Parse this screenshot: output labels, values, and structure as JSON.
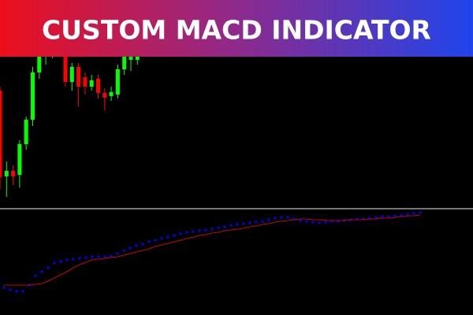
{
  "title": "CUSTOM MACD INDICATOR",
  "chart_data": [
    {
      "type": "candlestick",
      "ylim": [
        0,
        262
      ],
      "up_color": "#00ff00",
      "down_color": "#ff0000",
      "open": [
        147,
        38,
        45,
        40,
        79,
        110,
        170,
        190,
        196,
        200,
        190,
        158,
        177,
        164,
        152,
        162,
        144,
        140,
        142,
        174,
        186,
        186
      ],
      "high": [
        152,
        57,
        52,
        84,
        114,
        177,
        202,
        200,
        205,
        210,
        194,
        182,
        182,
        170,
        167,
        167,
        150,
        152,
        180,
        194,
        192,
        192
      ],
      "low": [
        22,
        12,
        27,
        24,
        72,
        102,
        162,
        180,
        188,
        190,
        152,
        147,
        127,
        142,
        147,
        137,
        122,
        134,
        137,
        167,
        172,
        180
      ],
      "close": [
        37,
        45,
        38,
        79,
        110,
        170,
        192,
        196,
        200,
        194,
        158,
        177,
        152,
        152,
        160,
        144,
        138,
        145,
        174,
        190,
        190,
        190
      ]
    },
    {
      "type": "line",
      "ylim": [
        0,
        135
      ],
      "series": [
        {
          "color": "#0000ff",
          "style": "dots",
          "values": [
            35,
            32,
            30,
            30,
            38,
            50,
            55,
            60,
            66,
            68,
            70,
            71,
            72,
            73,
            74,
            74,
            74,
            75,
            78,
            82,
            85,
            88,
            90,
            93,
            95,
            97,
            99,
            101,
            103,
            105,
            106,
            107,
            108,
            109,
            111,
            112,
            114,
            115,
            116,
            117,
            118,
            119,
            121,
            123,
            124,
            124,
            122,
            120,
            119,
            118,
            117,
            118,
            119,
            119,
            120,
            121,
            122,
            122,
            123,
            124,
            125,
            125,
            126,
            127,
            128,
            129,
            130
          ]
        },
        {
          "color": "#ff0000",
          "style": "line",
          "values": [
            38,
            38,
            38,
            38,
            38,
            39,
            40,
            43,
            47,
            51,
            55,
            60,
            64,
            67,
            70,
            71,
            72,
            73,
            74,
            76,
            78,
            80,
            82,
            84,
            87,
            89,
            91,
            93,
            95,
            97,
            99,
            101,
            102,
            104,
            105,
            107,
            108,
            109,
            110,
            112,
            113,
            115,
            116,
            118,
            119,
            120,
            121,
            122,
            122,
            121,
            121,
            120,
            120,
            120,
            120,
            121,
            121,
            121,
            122,
            122,
            123,
            123,
            124,
            125,
            126,
            126,
            127
          ]
        }
      ]
    }
  ]
}
